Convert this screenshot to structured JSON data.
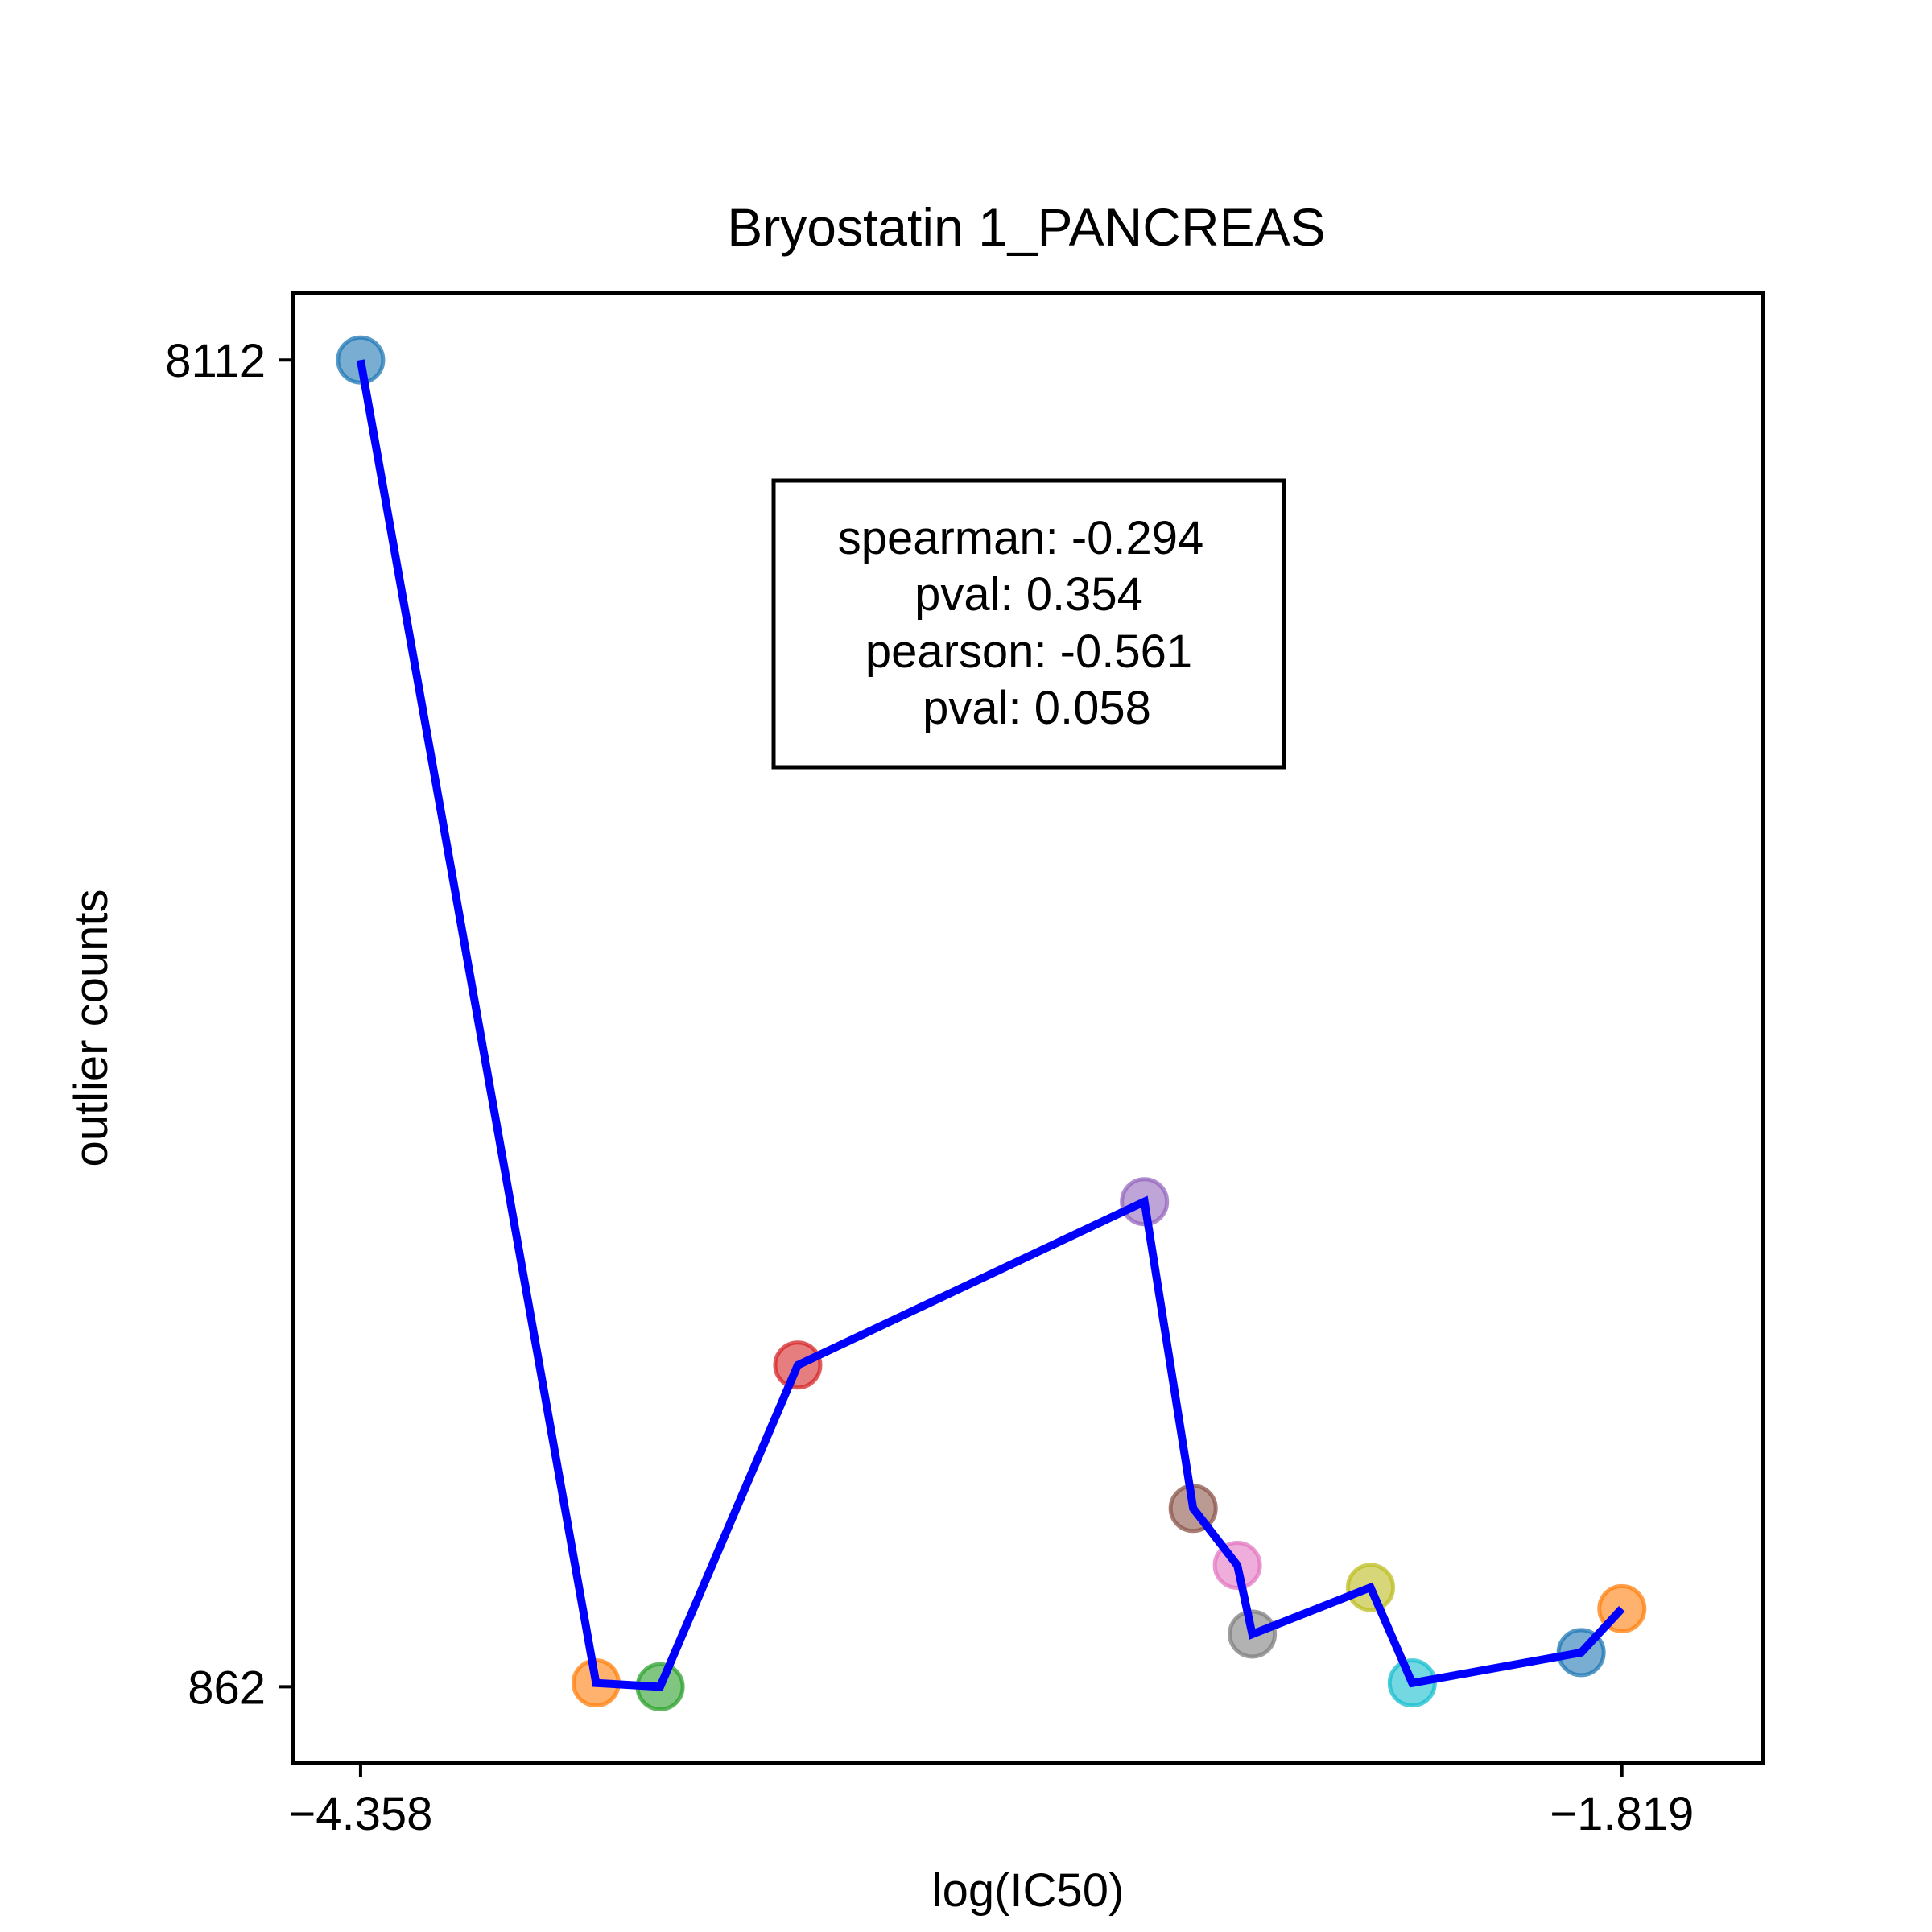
{
  "chart_data": {
    "type": "scatter",
    "title": "Bryostatin 1_PANCREAS",
    "xlabel": "log(IC50)",
    "ylabel": "outlier counts",
    "x_ticks": [
      {
        "value": -4.358,
        "label": "−4.358"
      },
      {
        "value": -1.819,
        "label": "−1.819"
      }
    ],
    "y_ticks": [
      {
        "value": 8112,
        "label": "8112"
      },
      {
        "value": 862,
        "label": "862"
      }
    ],
    "xlim": [
      -4.494,
      -1.535
    ],
    "ylim": [
      446,
      8478
    ],
    "grid": false,
    "line_color": "#0000ff",
    "points": [
      {
        "x": -4.358,
        "y": 8112,
        "color": "#1f77b4"
      },
      {
        "x": -3.884,
        "y": 883,
        "color": "#ff7f0e"
      },
      {
        "x": -3.755,
        "y": 862,
        "color": "#2ca02c"
      },
      {
        "x": -3.478,
        "y": 2620,
        "color": "#d62728"
      },
      {
        "x": -2.78,
        "y": 3513,
        "color": "#9467bd"
      },
      {
        "x": -2.682,
        "y": 1837,
        "color": "#8c564b"
      },
      {
        "x": -2.593,
        "y": 1526,
        "color": "#e377c2"
      },
      {
        "x": -2.563,
        "y": 1150,
        "color": "#7f7f7f"
      },
      {
        "x": -2.325,
        "y": 1405,
        "color": "#bcbd22"
      },
      {
        "x": -2.241,
        "y": 883,
        "color": "#17becf"
      },
      {
        "x": -1.901,
        "y": 1049,
        "color": "#1f77b4"
      },
      {
        "x": -1.819,
        "y": 1289,
        "color": "#ff7f0e"
      }
    ],
    "annotation": {
      "lines": [
        "spearman: -0.294",
        "pval: 0.354",
        "pearson: -0.561",
        "pval: 0.058"
      ],
      "placement": "top-center"
    }
  }
}
